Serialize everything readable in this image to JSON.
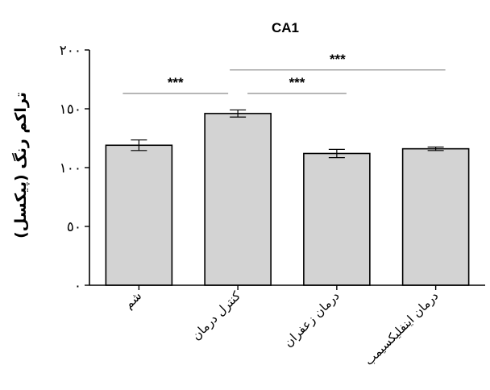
{
  "chart_data": {
    "type": "bar",
    "title": "CA1",
    "ylabel": "تراکم رنگ (پیکسل)",
    "xlabel": "",
    "ylim": [
      0,
      200
    ],
    "yticks": [
      0,
      50,
      100,
      150,
      200
    ],
    "ytick_labels": [
      "٠",
      "٥٠",
      "١٠٠",
      "١٥٠",
      "٢٠٠"
    ],
    "categories": [
      "شم",
      "کنترل درمان",
      "درمان زعفران",
      "درمان اینفلیکسیمب"
    ],
    "values": [
      119,
      146,
      112,
      116
    ],
    "errors": [
      4.5,
      3,
      3.5,
      1.5
    ],
    "bar_color": "#d3d3d3",
    "significance": [
      {
        "from": 0,
        "to": 1,
        "y": 163,
        "label": "***"
      },
      {
        "from": 1,
        "to": 2,
        "y": 163,
        "label": "***"
      },
      {
        "from": 1,
        "to": 3,
        "y": 183,
        "label": "***"
      }
    ]
  }
}
